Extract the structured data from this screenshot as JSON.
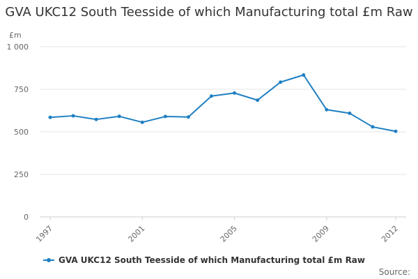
{
  "chart_data": {
    "type": "line",
    "title": "GVA UKC12 South Teesside of which Manufacturing total £m Raw",
    "unit_label": "£m",
    "ylim": [
      0,
      1000
    ],
    "y_ticks": [
      0,
      250,
      500,
      750,
      1000
    ],
    "y_tick_labels": [
      "0",
      "250",
      "500",
      "750",
      "1 000"
    ],
    "x_tick_labels": [
      "1997",
      "2001",
      "2005",
      "2009",
      "2012"
    ],
    "grid": true,
    "legend_position": "bottom-left",
    "series": [
      {
        "name": "GVA UKC12 South Teesside of which Manufacturing total £m Raw",
        "color": "#1f7fc2",
        "x": [
          1997,
          1998,
          1999,
          2000,
          2001,
          2002,
          2003,
          2004,
          2005,
          2006,
          2007,
          2008,
          2009,
          2010,
          2011,
          2012
        ],
        "values": [
          585,
          594,
          573,
          591,
          556,
          590,
          587,
          710,
          728,
          686,
          792,
          834,
          630,
          609,
          529,
          503
        ]
      }
    ]
  },
  "source_label": "Source:"
}
